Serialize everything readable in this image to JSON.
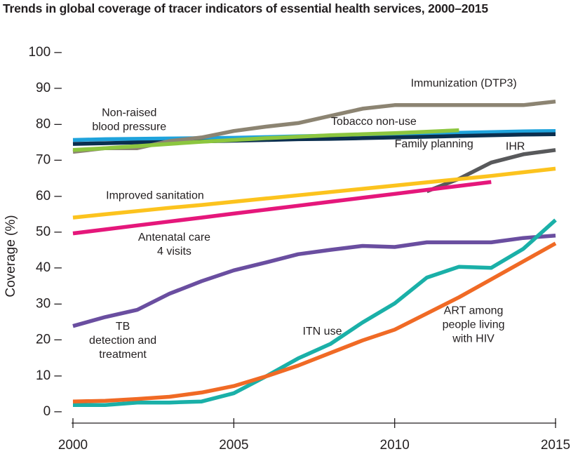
{
  "chart_data": {
    "type": "line",
    "title": "Trends in global coverage of tracer indicators of essential health services, 2000–2015",
    "xlabel": "",
    "ylabel": "Coverage (%)",
    "xlim": [
      2000,
      2015
    ],
    "ylim": [
      0,
      100
    ],
    "x_ticks": [
      2000,
      2005,
      2010,
      2015
    ],
    "y_ticks": [
      0,
      10,
      20,
      30,
      40,
      50,
      60,
      70,
      80,
      90,
      100
    ],
    "y_tick_suffix": " –",
    "grid": false,
    "series": [
      {
        "name": "Non-raised blood pressure",
        "color": "#1fa3dc",
        "x": [
          2000,
          2001,
          2002,
          2003,
          2004,
          2005,
          2006,
          2007,
          2008,
          2009,
          2010,
          2011,
          2012,
          2013,
          2014,
          2015
        ],
        "values": [
          75.3,
          75.5,
          75.6,
          75.7,
          75.8,
          75.9,
          76.1,
          76.3,
          76.5,
          76.7,
          76.9,
          77.1,
          77.3,
          77.5,
          77.7,
          77.8
        ]
      },
      {
        "name": "Family planning",
        "color": "#0b2f4f",
        "x": [
          2000,
          2001,
          2002,
          2003,
          2004,
          2005,
          2006,
          2007,
          2008,
          2009,
          2010,
          2011,
          2012,
          2013,
          2014,
          2015
        ],
        "values": [
          74.2,
          74.4,
          74.6,
          74.7,
          74.9,
          75.1,
          75.3,
          75.5,
          75.6,
          75.8,
          76.0,
          76.2,
          76.4,
          76.6,
          76.8,
          76.9
        ]
      },
      {
        "name": "Immunization (DTP3)",
        "color": "#8c8472",
        "x": [
          2000,
          2001,
          2002,
          2003,
          2004,
          2005,
          2006,
          2007,
          2008,
          2009,
          2010,
          2011,
          2012,
          2013,
          2014,
          2015
        ],
        "values": [
          72,
          73,
          73,
          75,
          76,
          77.8,
          79,
          80,
          82,
          84,
          85,
          85,
          85,
          85,
          85,
          86
        ]
      },
      {
        "name": "Tobacco non-use",
        "color": "#8cc63f",
        "x": [
          2000,
          2001,
          2002,
          2003,
          2004,
          2005,
          2006,
          2007,
          2008,
          2009,
          2010,
          2011,
          2012
        ],
        "values": [
          72.5,
          73.0,
          73.6,
          74.2,
          74.8,
          75.3,
          75.8,
          76.2,
          76.6,
          76.9,
          77.2,
          77.6,
          78.0
        ]
      },
      {
        "name": "IHR",
        "color": "#58595b",
        "x": [
          2011,
          2012,
          2013,
          2014,
          2015
        ],
        "values": [
          61,
          64.5,
          69,
          71.3,
          72.5
        ]
      },
      {
        "name": "Improved sanitation",
        "color": "#fcc31e",
        "x": [
          2000,
          2001,
          2002,
          2003,
          2004,
          2005,
          2006,
          2007,
          2008,
          2009,
          2010,
          2011,
          2012,
          2013,
          2014,
          2015
        ],
        "values": [
          53.7,
          54.6,
          55.5,
          56.4,
          57.2,
          58.1,
          59.0,
          59.9,
          60.8,
          61.7,
          62.6,
          63.5,
          64.4,
          65.3,
          66.3,
          67.3
        ]
      },
      {
        "name": "Antenatal care 4 visits",
        "color": "#e5177b",
        "x": [
          2000,
          2001,
          2002,
          2003,
          2004,
          2005,
          2006,
          2007,
          2008,
          2009,
          2010,
          2011,
          2012,
          2013
        ],
        "values": [
          49.3,
          50.4,
          51.5,
          52.6,
          53.7,
          54.8,
          55.9,
          57.0,
          58.1,
          59.2,
          60.3,
          61.4,
          62.5,
          63.6
        ]
      },
      {
        "name": "TB detection and treatment",
        "color": "#6a4ea0",
        "x": [
          2000,
          2001,
          2002,
          2003,
          2004,
          2005,
          2006,
          2007,
          2008,
          2009,
          2010,
          2011,
          2012,
          2013,
          2014,
          2015
        ],
        "values": [
          23.5,
          26,
          28,
          32.5,
          36,
          39,
          41.2,
          43.5,
          44.7,
          45.8,
          45.5,
          46.8,
          46.8,
          46.8,
          48,
          48.7
        ]
      },
      {
        "name": "ITN use",
        "color": "#1ab0a8",
        "x": [
          2000,
          2001,
          2002,
          2003,
          2004,
          2005,
          2006,
          2007,
          2008,
          2009,
          2010,
          2011,
          2012,
          2013,
          2014,
          2015
        ],
        "values": [
          1.5,
          1.5,
          2.2,
          2.2,
          2.5,
          4.8,
          9.5,
          14.5,
          18.5,
          24.5,
          29.8,
          37,
          40,
          39.7,
          45,
          53
        ]
      },
      {
        "name": "ART among people living with HIV",
        "color": "#f06a25",
        "x": [
          2000,
          2001,
          2002,
          2003,
          2004,
          2005,
          2006,
          2007,
          2008,
          2009,
          2010,
          2011,
          2012,
          2013,
          2014,
          2015
        ],
        "values": [
          2.5,
          2.7,
          3.2,
          3.8,
          5.0,
          6.8,
          9.5,
          12.5,
          16.0,
          19.5,
          22.5,
          27.0,
          31.5,
          36.5,
          41.5,
          46.5
        ]
      }
    ],
    "annotations": [
      {
        "lines": [
          "Immunization (DTP3)"
        ],
        "x": 2010.5,
        "y": 90.1,
        "anchor": "start"
      },
      {
        "lines": [
          "Non-raised",
          "blood pressure"
        ],
        "x": 2001.75,
        "y": 81.9,
        "anchor": "middle"
      },
      {
        "lines": [
          "Tobacco non-use"
        ],
        "x": 2009.35,
        "y": 79.5,
        "anchor": "middle"
      },
      {
        "lines": [
          "Family planning"
        ],
        "x": 2010.0,
        "y": 73.2,
        "anchor": "start"
      },
      {
        "lines": [
          "IHR"
        ],
        "x": 2013.45,
        "y": 72.6,
        "anchor": "start"
      },
      {
        "lines": [
          "Improved sanitation"
        ],
        "x": 2002.55,
        "y": 58.9,
        "anchor": "middle"
      },
      {
        "lines": [
          "Antenatal care",
          "4 visits"
        ],
        "x": 2003.15,
        "y": 47.3,
        "anchor": "middle"
      },
      {
        "lines": [
          "TB",
          "detection and",
          "treatment"
        ],
        "x": 2001.55,
        "y": 22.5,
        "anchor": "middle"
      },
      {
        "lines": [
          "ITN use"
        ],
        "x": 2007.75,
        "y": 21.1,
        "anchor": "middle"
      },
      {
        "lines": [
          "ART among",
          "people living",
          "with HIV"
        ],
        "x": 2012.45,
        "y": 26.9,
        "anchor": "middle"
      }
    ]
  }
}
